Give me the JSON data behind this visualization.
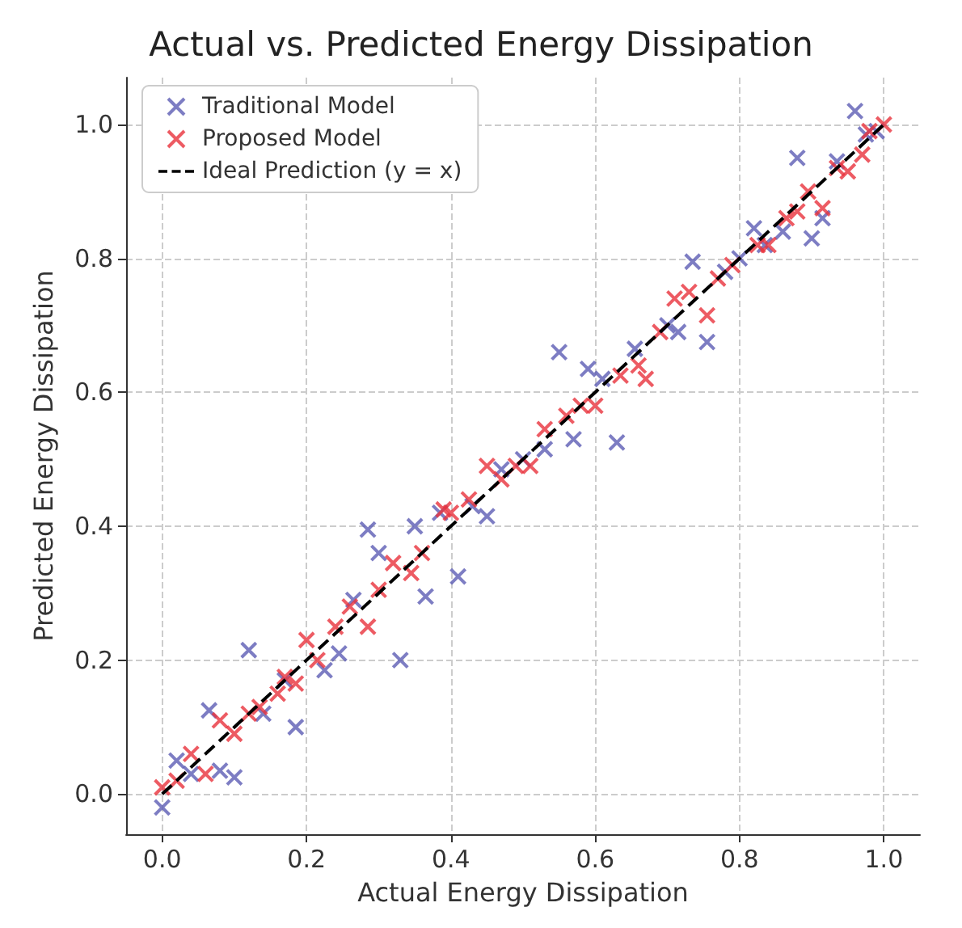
{
  "chart_data": {
    "type": "scatter",
    "title": "Actual vs. Predicted Energy Dissipation",
    "xlabel": "Actual Energy Dissipation",
    "ylabel": "Predicted Energy Dissipation",
    "xlim": [
      -0.05,
      1.05
    ],
    "ylim": [
      -0.06,
      1.07
    ],
    "xticks": [
      {
        "value": 0,
        "label": "0.0"
      },
      {
        "value": 0.2,
        "label": "0.2"
      },
      {
        "value": 0.4,
        "label": "0.4"
      },
      {
        "value": 0.6,
        "label": "0.6"
      },
      {
        "value": 0.8,
        "label": "0.8"
      },
      {
        "value": 1,
        "label": "1.0"
      }
    ],
    "yticks": [
      {
        "value": 0,
        "label": "0.0"
      },
      {
        "value": 0.2,
        "label": "0.2"
      },
      {
        "value": 0.4,
        "label": "0.4"
      },
      {
        "value": 0.6,
        "label": "0.6"
      },
      {
        "value": 0.8,
        "label": "0.8"
      },
      {
        "value": 1,
        "label": "1.0"
      }
    ],
    "grid": true,
    "legend": "top left",
    "marker": "cross",
    "series": [
      {
        "name": "Traditional Model",
        "color": "#5c5cb4",
        "x": [
          0,
          0.02,
          0.04,
          0.065,
          0.08,
          0.1,
          0.12,
          0.14,
          0.17,
          0.185,
          0.225,
          0.245,
          0.265,
          0.285,
          0.3,
          0.33,
          0.35,
          0.365,
          0.385,
          0.41,
          0.43,
          0.45,
          0.47,
          0.5,
          0.53,
          0.55,
          0.57,
          0.59,
          0.61,
          0.63,
          0.655,
          0.7,
          0.715,
          0.735,
          0.755,
          0.78,
          0.8,
          0.82,
          0.835,
          0.86,
          0.88,
          0.9,
          0.915,
          0.935,
          0.96,
          0.975,
          0.99
        ],
        "values": [
          -0.02,
          0.05,
          0.03,
          0.125,
          0.035,
          0.025,
          0.215,
          0.12,
          0.17,
          0.1,
          0.185,
          0.21,
          0.29,
          0.395,
          0.36,
          0.2,
          0.4,
          0.295,
          0.42,
          0.325,
          0.43,
          0.415,
          0.485,
          0.5,
          0.515,
          0.66,
          0.53,
          0.635,
          0.62,
          0.525,
          0.665,
          0.7,
          0.69,
          0.795,
          0.675,
          0.78,
          0.8,
          0.845,
          0.82,
          0.84,
          0.95,
          0.83,
          0.86,
          0.945,
          1.02,
          0.985,
          0.99
        ]
      },
      {
        "name": "Proposed Model",
        "color": "#e8323c",
        "x": [
          0,
          0.02,
          0.04,
          0.06,
          0.08,
          0.1,
          0.12,
          0.135,
          0.16,
          0.17,
          0.185,
          0.2,
          0.215,
          0.24,
          0.26,
          0.285,
          0.3,
          0.32,
          0.345,
          0.36,
          0.39,
          0.4,
          0.425,
          0.45,
          0.47,
          0.49,
          0.51,
          0.53,
          0.56,
          0.58,
          0.6,
          0.635,
          0.66,
          0.67,
          0.69,
          0.71,
          0.73,
          0.755,
          0.77,
          0.79,
          0.825,
          0.84,
          0.865,
          0.88,
          0.895,
          0.915,
          0.935,
          0.95,
          0.97,
          0.98,
          1.0
        ],
        "values": [
          0.01,
          0.02,
          0.06,
          0.03,
          0.11,
          0.09,
          0.12,
          0.13,
          0.15,
          0.175,
          0.165,
          0.23,
          0.2,
          0.25,
          0.28,
          0.25,
          0.305,
          0.345,
          0.33,
          0.36,
          0.425,
          0.42,
          0.44,
          0.49,
          0.47,
          0.49,
          0.49,
          0.545,
          0.565,
          0.58,
          0.58,
          0.625,
          0.64,
          0.62,
          0.69,
          0.74,
          0.75,
          0.715,
          0.77,
          0.79,
          0.82,
          0.82,
          0.86,
          0.87,
          0.9,
          0.875,
          0.935,
          0.93,
          0.955,
          0.99,
          1.0
        ]
      },
      {
        "name": "Ideal Prediction (y = x)",
        "type": "line",
        "color": "#000000",
        "line_style": "dashed",
        "marker": "none",
        "x": [
          0,
          1
        ],
        "values": [
          0,
          1
        ]
      }
    ]
  }
}
